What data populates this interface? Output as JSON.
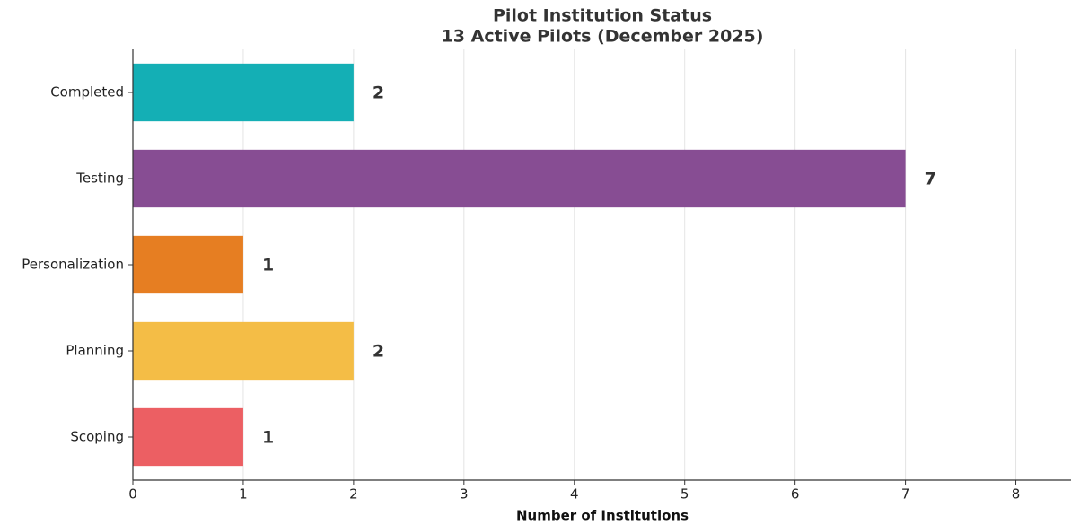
{
  "chart_data": {
    "type": "barh",
    "title": "Pilot Institution Status",
    "subtitle": "13 Active Pilots (December 2025)",
    "xlabel": "Number of Institutions",
    "categories": [
      "Completed",
      "Testing",
      "Personalization",
      "Planning",
      "Scoping"
    ],
    "values": [
      2,
      7,
      1,
      2,
      1
    ],
    "colors": [
      "#14afb5",
      "#874d93",
      "#e67e22",
      "#f4bd46",
      "#ec5f63"
    ],
    "xlim": [
      0,
      8.5
    ],
    "xticks": [
      0,
      1,
      2,
      3,
      4,
      5,
      6,
      7,
      8
    ],
    "grid": true
  }
}
